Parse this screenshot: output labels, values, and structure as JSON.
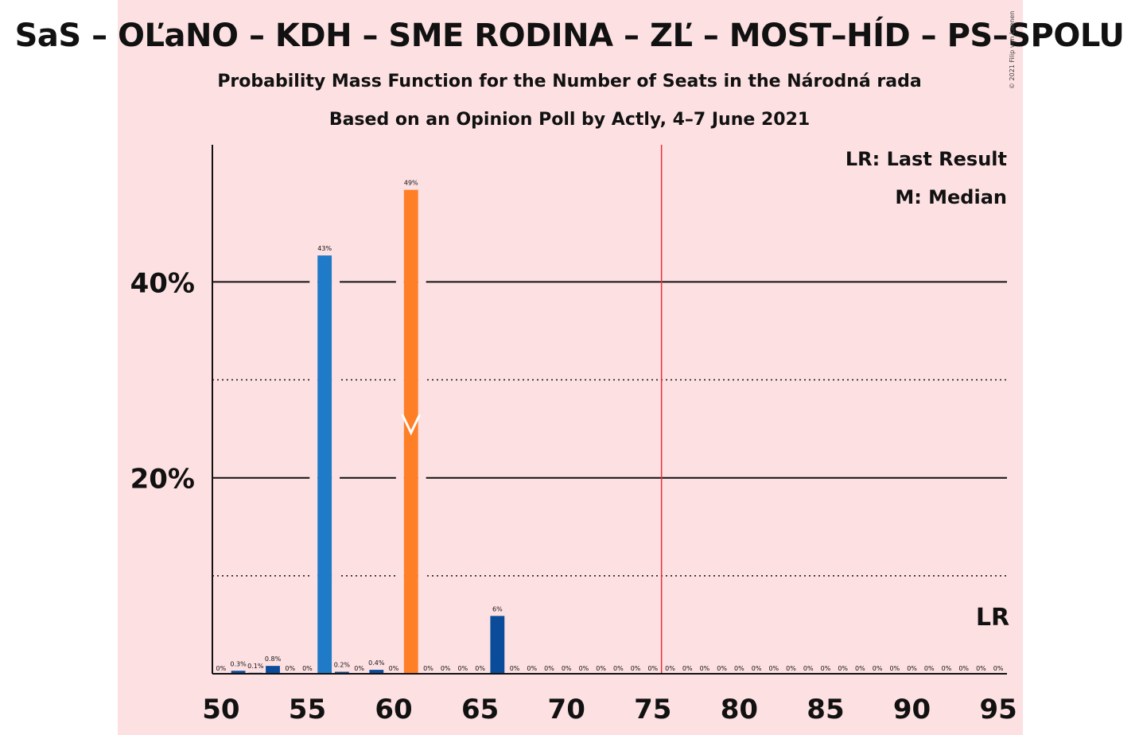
{
  "title": "SaS – OĽaNO – KDH – SME RODINA – ZĽ – MOST–HÍD – PS–SPOLU",
  "subtitle": "Probability Mass Function for the Number of Seats in the Národná rada",
  "poll_note": "Based on an Opinion Poll by Actly, 4–7 June 2021",
  "copyright": "© 2021 Filip van Laenen",
  "legend": {
    "last_result": "LR: Last Result",
    "median": "M: Median"
  },
  "lr_marker": "LR",
  "colors": {
    "bar_default": "#0a4c9a",
    "bar_highlight_blue": "#1f7ac7",
    "bar_median": "#ff7f27",
    "majority_line": "#e8303a",
    "background": "#fde0e2"
  },
  "chart_data": {
    "type": "bar",
    "x": [
      50,
      51,
      52,
      53,
      54,
      55,
      56,
      57,
      58,
      59,
      60,
      61,
      62,
      63,
      64,
      65,
      66,
      67,
      68,
      69,
      70,
      71,
      72,
      73,
      74,
      75,
      76,
      77,
      78,
      79,
      80,
      81,
      82,
      83,
      84,
      85,
      86,
      87,
      88,
      89,
      90,
      91,
      92,
      93,
      94,
      95
    ],
    "values": [
      0,
      0.3,
      0.1,
      0.8,
      0,
      0,
      42.7,
      0.2,
      0,
      0.4,
      0,
      49.4,
      0,
      0,
      0,
      0,
      5.9,
      0,
      0,
      0,
      0,
      0,
      0,
      0,
      0,
      0,
      0,
      0,
      0,
      0,
      0,
      0,
      0,
      0,
      0,
      0,
      0,
      0,
      0,
      0,
      0,
      0,
      0,
      0,
      0,
      0
    ],
    "labels": [
      "0%",
      "0.3%",
      "0.1%",
      "0.8%",
      "0%",
      "0%",
      "43%",
      "0.2%",
      "0%",
      "0.4%",
      "0%",
      "49%",
      "0%",
      "0%",
      "0%",
      "0%",
      "6%",
      "0%",
      "0%",
      "0%",
      "0%",
      "0%",
      "0%",
      "0%",
      "0%",
      "0%",
      "0%",
      "0%",
      "0%",
      "0%",
      "0%",
      "0%",
      "0%",
      "0%",
      "0%",
      "0%",
      "0%",
      "0%",
      "0%",
      "0%",
      "0%",
      "0%",
      "0%",
      "0%",
      "0%",
      "0%"
    ],
    "x_ticks": [
      50,
      55,
      60,
      65,
      70,
      75,
      80,
      85,
      90,
      95
    ],
    "x_tick_labels": [
      "50",
      "55",
      "60",
      "65",
      "70",
      "75",
      "80",
      "85",
      "90",
      "95"
    ],
    "y_ticks_major": [
      20,
      40
    ],
    "y_tick_labels": [
      "20%",
      "40%"
    ],
    "y_ticks_minor": [
      10,
      30
    ],
    "ylim": [
      0,
      54
    ],
    "xlim": [
      49.5,
      95.5
    ],
    "median": 61,
    "majority_threshold": 75.5,
    "last_result": 95,
    "grid": true,
    "legend_position": "top-right"
  }
}
